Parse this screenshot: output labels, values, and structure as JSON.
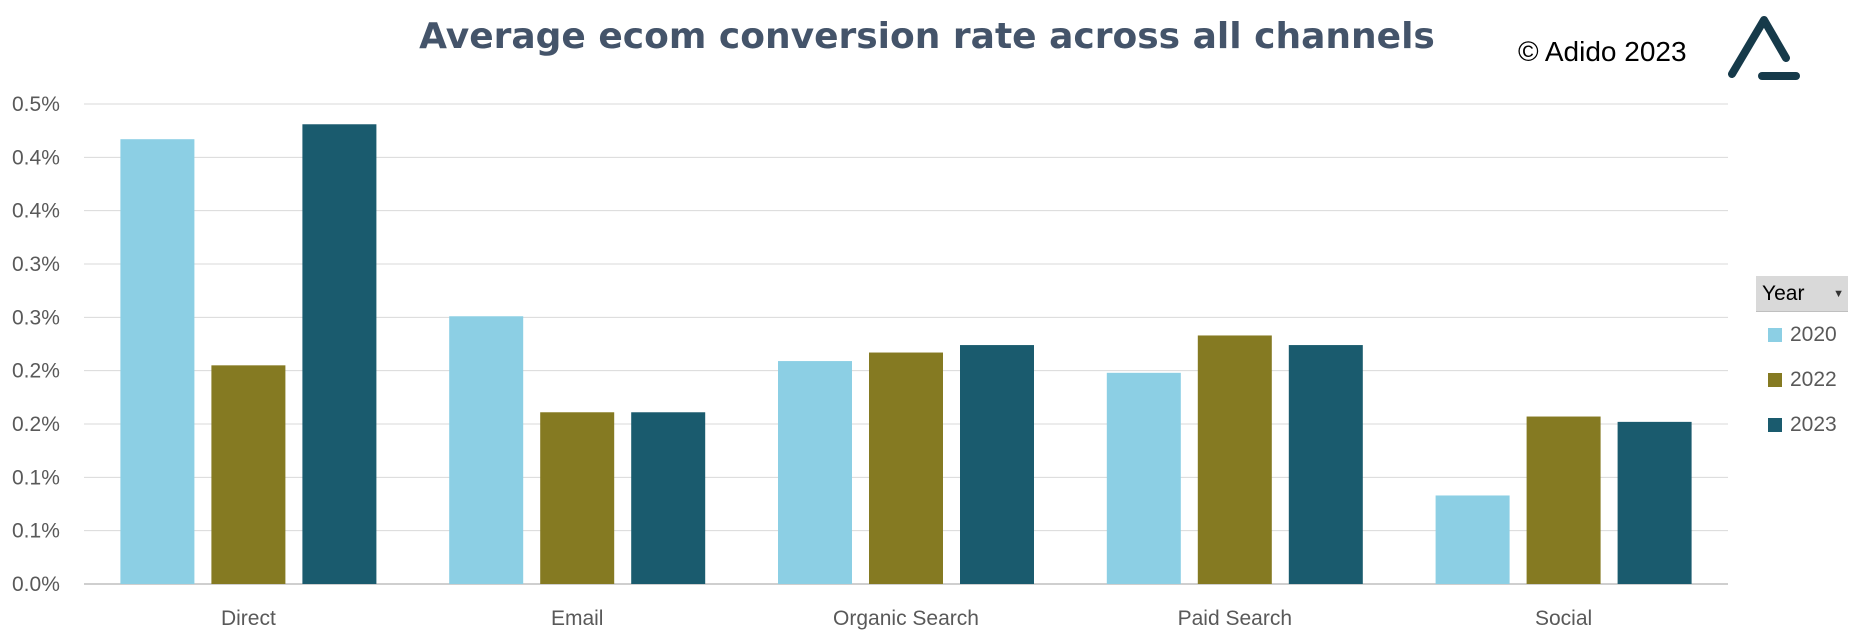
{
  "header": {
    "title": "Average ecom conversion rate across all channels",
    "copyright": "© Adido 2023"
  },
  "legend": {
    "header": "Year"
  },
  "chart_data": {
    "type": "bar",
    "title": "Average ecom conversion rate across all channels",
    "xlabel": "",
    "ylabel": "",
    "categories": [
      "Direct",
      "Email",
      "Organic Search",
      "Paid Search",
      "Social"
    ],
    "series": [
      {
        "name": "2020",
        "color": "#8ccfe4",
        "values": [
          0.417,
          0.251,
          0.209,
          0.198,
          0.083
        ]
      },
      {
        "name": "2022",
        "color": "#857a22",
        "values": [
          0.205,
          0.161,
          0.217,
          0.233,
          0.157
        ]
      },
      {
        "name": "2023",
        "color": "#1a5b6e",
        "values": [
          0.431,
          0.161,
          0.224,
          0.224,
          0.152
        ]
      }
    ],
    "ylim": [
      0,
      0.45
    ],
    "yticks": [
      0,
      0.05,
      0.1,
      0.15,
      0.2,
      0.25,
      0.3,
      0.35,
      0.4,
      0.45
    ],
    "ytick_labels": [
      "0.0%",
      "0.1%",
      "0.1%",
      "0.2%",
      "0.2%",
      "0.3%",
      "0.3%",
      "0.4%",
      "0.4%",
      "0.5%"
    ],
    "grid": true,
    "legend_position": "right"
  }
}
